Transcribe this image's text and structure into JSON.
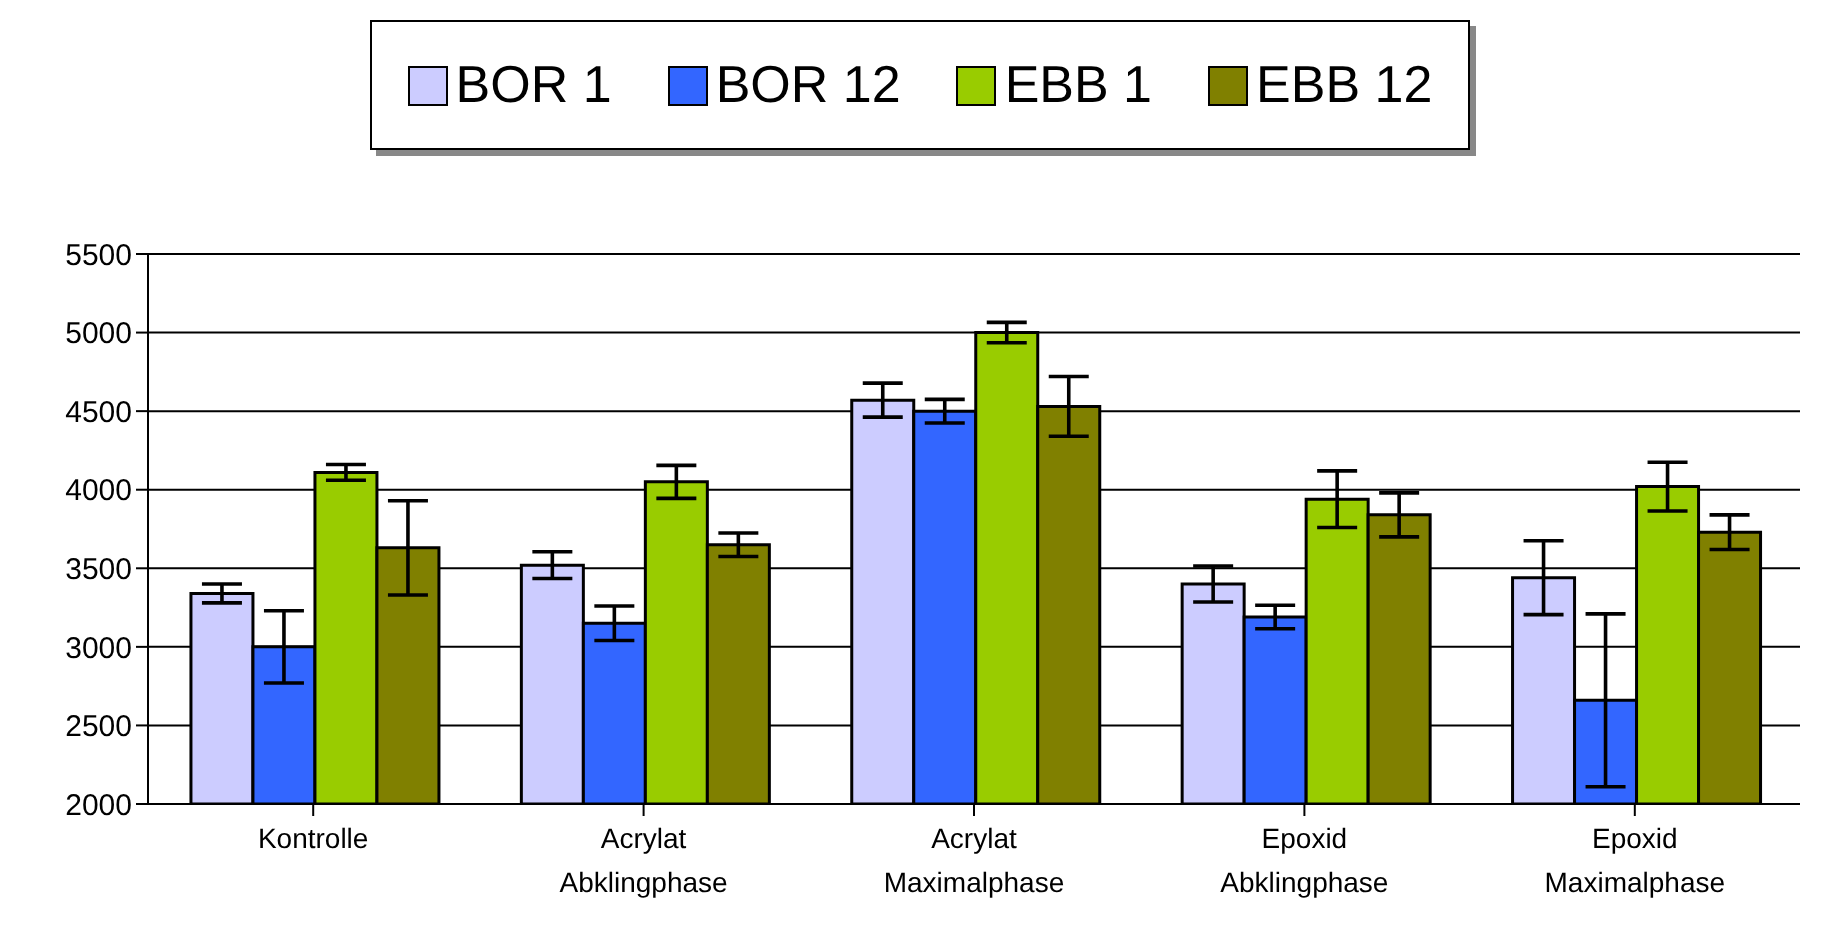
{
  "chart_data": {
    "type": "bar",
    "categories": [
      "Kontrolle",
      "Acrylat Abklingphase",
      "Acrylat Maximalphase",
      "Epoxid Abklingphase",
      "Epoxid Maximalphase"
    ],
    "series": [
      {
        "name": "BOR 1",
        "color": "#ccccff",
        "values": [
          3340,
          3520,
          4570,
          3400,
          3440
        ],
        "errors": [
          60,
          85,
          108,
          115,
          235
        ]
      },
      {
        "name": "BOR 12",
        "color": "#3366ff",
        "values": [
          3000,
          3150,
          4500,
          3190,
          2660
        ],
        "errors": [
          230,
          110,
          75,
          75,
          550
        ]
      },
      {
        "name": "EBB 1",
        "color": "#99cc00",
        "values": [
          4110,
          4050,
          5000,
          3940,
          4020
        ],
        "errors": [
          50,
          105,
          65,
          180,
          155
        ]
      },
      {
        "name": "EBB 12",
        "color": "#808000",
        "values": [
          3630,
          3650,
          4530,
          3840,
          3730
        ],
        "errors": [
          300,
          75,
          190,
          140,
          110
        ]
      }
    ],
    "ylim": [
      2000,
      5500
    ],
    "yticks": [
      2000,
      2500,
      3000,
      3500,
      4000,
      4500,
      5000,
      5500
    ],
    "grid": "y",
    "legend": "top"
  }
}
